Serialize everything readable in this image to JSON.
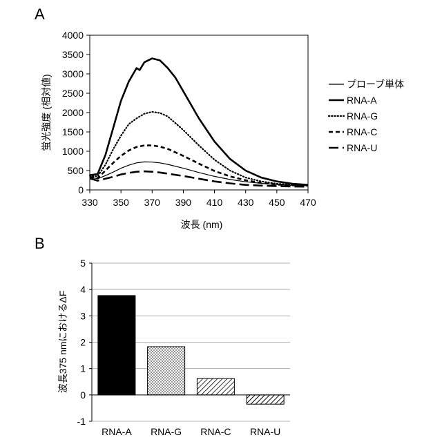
{
  "colors": {
    "ink": "#000000",
    "grid": "#b0b0b0",
    "background": "#ffffff"
  },
  "chart_data": [
    {
      "panel_label": "A",
      "type": "line",
      "xlabel": "波長 (nm)",
      "ylabel": "蛍光強度 (相対値)",
      "xlim": [
        330,
        470
      ],
      "ylim": [
        0,
        4000
      ],
      "xticks": [
        330,
        350,
        370,
        390,
        410,
        430,
        450,
        470
      ],
      "yticks": [
        0,
        500,
        1000,
        1500,
        2000,
        2500,
        3000,
        3500,
        4000
      ],
      "grid": false,
      "legend_position": "right",
      "series": [
        {
          "name": "プローブ単体",
          "style": "solid-thin",
          "x": [
            330,
            335,
            340,
            345,
            350,
            355,
            360,
            365,
            370,
            375,
            380,
            390,
            400,
            410,
            420,
            430,
            440,
            450,
            460,
            470
          ],
          "y": [
            330,
            290,
            370,
            460,
            560,
            640,
            700,
            725,
            720,
            700,
            660,
            560,
            450,
            350,
            270,
            210,
            170,
            140,
            120,
            110
          ]
        },
        {
          "name": "RNA-A",
          "style": "solid-thick",
          "x": [
            330,
            335,
            340,
            345,
            350,
            355,
            360,
            362,
            365,
            370,
            375,
            380,
            385,
            390,
            400,
            410,
            420,
            430,
            440,
            450,
            460,
            470
          ],
          "y": [
            380,
            410,
            900,
            1600,
            2300,
            2800,
            3150,
            3100,
            3300,
            3400,
            3350,
            3150,
            2900,
            2550,
            1850,
            1250,
            800,
            500,
            320,
            220,
            160,
            130
          ]
        },
        {
          "name": "RNA-G",
          "style": "dotted",
          "x": [
            330,
            335,
            340,
            345,
            350,
            355,
            360,
            365,
            370,
            375,
            380,
            390,
            400,
            410,
            420,
            430,
            440,
            450,
            460,
            470
          ],
          "y": [
            370,
            350,
            650,
            1050,
            1400,
            1700,
            1850,
            1970,
            2020,
            1990,
            1900,
            1550,
            1150,
            780,
            500,
            320,
            220,
            160,
            130,
            120
          ]
        },
        {
          "name": "RNA-C",
          "style": "dashed",
          "x": [
            330,
            335,
            340,
            345,
            350,
            355,
            360,
            365,
            370,
            375,
            380,
            390,
            400,
            410,
            420,
            430,
            440,
            450,
            460,
            470
          ],
          "y": [
            340,
            300,
            500,
            700,
            880,
            1020,
            1110,
            1150,
            1150,
            1120,
            1060,
            880,
            680,
            490,
            350,
            250,
            180,
            140,
            120,
            110
          ]
        },
        {
          "name": "RNA-U",
          "style": "long-dash",
          "x": [
            330,
            335,
            340,
            345,
            350,
            355,
            360,
            365,
            370,
            375,
            380,
            390,
            400,
            410,
            420,
            430,
            440,
            450,
            460,
            470
          ],
          "y": [
            300,
            240,
            290,
            340,
            400,
            440,
            470,
            480,
            470,
            450,
            420,
            360,
            290,
            220,
            170,
            130,
            110,
            100,
            90,
            85
          ]
        }
      ]
    },
    {
      "panel_label": "B",
      "type": "bar",
      "ylabel": "波長375 nmにおけるΔF",
      "categories": [
        "RNA-A",
        "RNA-G",
        "RNA-C",
        "RNA-U"
      ],
      "values": [
        3.77,
        1.83,
        0.62,
        -0.35
      ],
      "fills": [
        "solid",
        "dots",
        "diagonal",
        "diagonal-dense"
      ],
      "ylim": [
        -1,
        5
      ],
      "yticks": [
        -1,
        0,
        1,
        2,
        3,
        4,
        5
      ],
      "grid": true
    }
  ]
}
